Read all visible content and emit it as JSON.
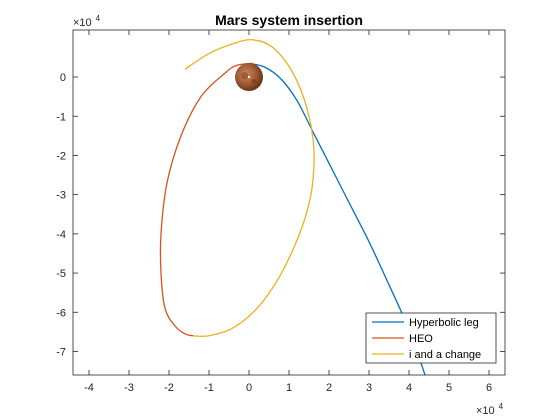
{
  "chart_data": {
    "type": "line",
    "title": "Mars system insertion",
    "xlabel": "",
    "ylabel": "",
    "x_exponent_label": {
      "base": "×10",
      "exp": "4"
    },
    "y_exponent_label": {
      "base": "×10",
      "exp": "4"
    },
    "xlim": [
      -4.4,
      6.4
    ],
    "ylim": [
      -7.6,
      1.2
    ],
    "x_ticks": [
      -4,
      -3,
      -2,
      -1,
      0,
      1,
      2,
      3,
      4,
      5,
      6
    ],
    "y_ticks": [
      0,
      -1,
      -2,
      -3,
      -4,
      -5,
      -6,
      -7
    ],
    "x_tick_labels": [
      "-4",
      "-3",
      "-2",
      "-1",
      "0",
      "1",
      "2",
      "3",
      "4",
      "5",
      "6"
    ],
    "y_tick_labels": [
      "0",
      "-1",
      "-2",
      "-3",
      "-4",
      "-5",
      "-6",
      "-7"
    ],
    "grid": false,
    "legend_position": "bottom-right",
    "series": [
      {
        "name": "Hyperbolic leg",
        "color": "#0072BD",
        "points": [
          [
            0.0,
            0.35
          ],
          [
            0.4,
            0.25
          ],
          [
            0.8,
            -0.05
          ],
          [
            1.2,
            -0.6
          ],
          [
            1.6,
            -1.4
          ],
          [
            2.0,
            -2.2
          ],
          [
            2.5,
            -3.2
          ],
          [
            3.0,
            -4.2
          ],
          [
            3.5,
            -5.3
          ],
          [
            3.9,
            -6.2
          ],
          [
            4.2,
            -7.0
          ],
          [
            4.4,
            -7.6
          ]
        ]
      },
      {
        "name": "HEO",
        "color": "#D95319",
        "points": [
          [
            0.1,
            0.35
          ],
          [
            -0.3,
            0.3
          ],
          [
            -0.6,
            0.1
          ],
          [
            -1.2,
            -0.5
          ],
          [
            -1.7,
            -1.5
          ],
          [
            -2.05,
            -2.7
          ],
          [
            -2.2,
            -4.0
          ],
          [
            -2.2,
            -5.0
          ],
          [
            -2.1,
            -5.9
          ],
          [
            -1.85,
            -6.35
          ],
          [
            -1.6,
            -6.55
          ],
          [
            -1.4,
            -6.6
          ]
        ]
      },
      {
        "name": "i and a change",
        "color": "#EDB120",
        "points": [
          [
            -1.6,
            0.2
          ],
          [
            -1.0,
            0.6
          ],
          [
            -0.4,
            0.85
          ],
          [
            0.1,
            0.95
          ],
          [
            0.6,
            0.75
          ],
          [
            1.1,
            0.1
          ],
          [
            1.45,
            -0.8
          ],
          [
            1.62,
            -1.8
          ],
          [
            1.58,
            -2.8
          ],
          [
            1.4,
            -3.6
          ],
          [
            1.1,
            -4.4
          ],
          [
            0.7,
            -5.2
          ],
          [
            0.2,
            -5.9
          ],
          [
            -0.4,
            -6.4
          ],
          [
            -1.0,
            -6.6
          ],
          [
            -1.4,
            -6.6
          ]
        ]
      }
    ],
    "planet": {
      "name": "",
      "x": 0.0,
      "y": 0.0,
      "radius": 0.35
    }
  }
}
